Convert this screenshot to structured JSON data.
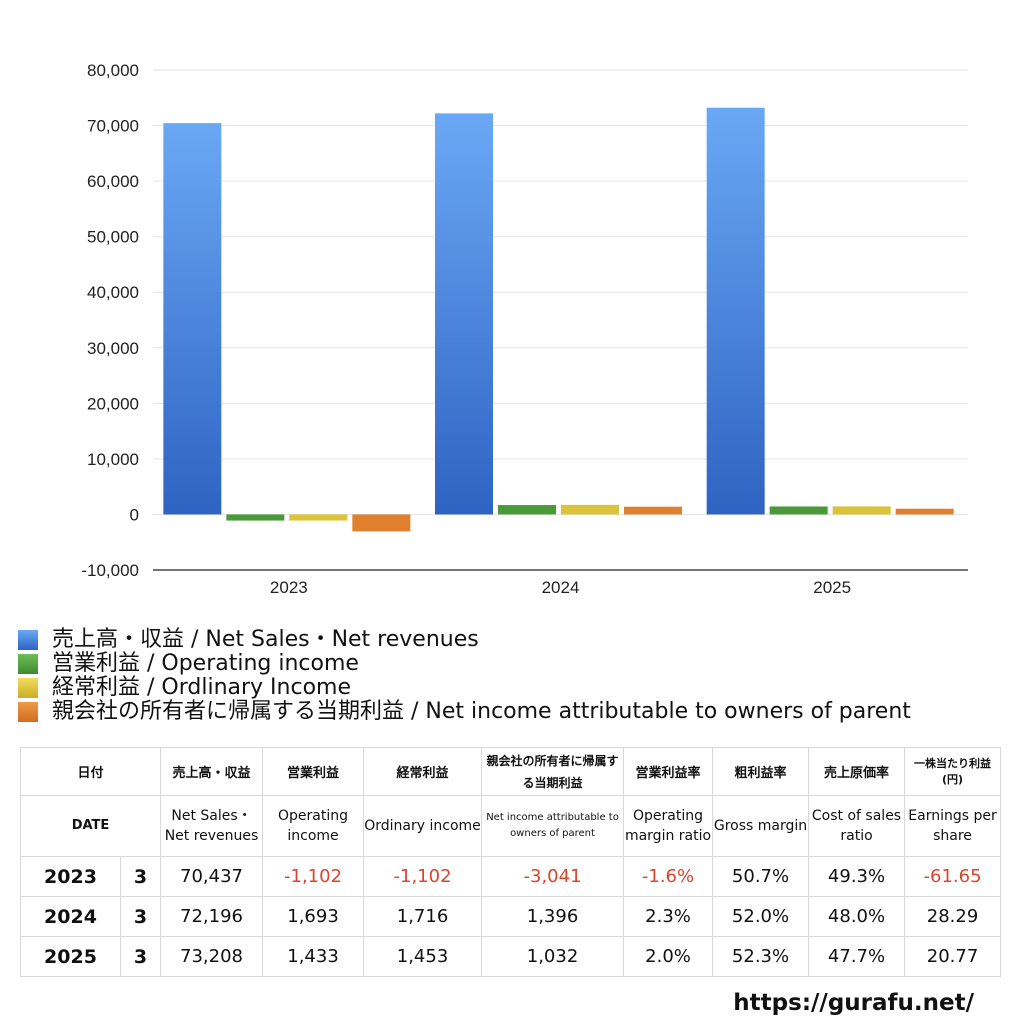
{
  "chart_data": {
    "type": "bar",
    "categories": [
      "2023",
      "2024",
      "2025"
    ],
    "series": [
      {
        "name": "売上高・収益 / Net Sales・Net revenues",
        "values": [
          70437,
          72196,
          73208
        ]
      },
      {
        "name": "営業利益 / Operating income",
        "values": [
          -1102,
          1693,
          1433
        ]
      },
      {
        "name": "経常利益 / Ordlinary Income",
        "values": [
          -1102,
          1716,
          1453
        ]
      },
      {
        "name": "親会社の所有者に帰属する当期利益 / Net income attributable to owners of parent",
        "values": [
          -3041,
          1396,
          1032
        ]
      }
    ],
    "ylim": [
      -10000,
      80000
    ],
    "yticks": [
      "80,000",
      "70,000",
      "60,000",
      "50,000",
      "40,000",
      "30,000",
      "20,000",
      "10,000",
      "0",
      "-10,000"
    ],
    "ytick_values": [
      80000,
      70000,
      60000,
      50000,
      40000,
      30000,
      20000,
      10000,
      0,
      -10000
    ],
    "grid": true,
    "legend_position": "bottom",
    "colors": {
      "net_sales_top": "#6aa8f5",
      "net_sales_bottom": "#2f63c2",
      "operating": "#4a9a3a",
      "ordinary": "#dcc43a",
      "net_income": "#e0802f"
    }
  },
  "table": {
    "header_jp": [
      "日付",
      "売上高・収益",
      "営業利益",
      "経常利益",
      "親会社の所有者に帰属する当期利益",
      "営業利益率",
      "粗利益率",
      "売上原価率",
      "一株当たり利益(円)"
    ],
    "header_en": [
      "DATE",
      "Net Sales・Net revenues",
      "Operating income",
      "Ordinary income",
      "Net income attributable to owners of parent",
      "Operating margin ratio",
      "Gross margin",
      "Cost of sales ratio",
      "Earnings per share"
    ],
    "rows": [
      {
        "year": "2023",
        "month": "3",
        "cells": [
          "70,437",
          "-1,102",
          "-1,102",
          "-3,041",
          "-1.6%",
          "50.7%",
          "49.3%",
          "-61.65"
        ]
      },
      {
        "year": "2024",
        "month": "3",
        "cells": [
          "72,196",
          "1,693",
          "1,716",
          "1,396",
          "2.3%",
          "52.0%",
          "48.0%",
          "28.29"
        ]
      },
      {
        "year": "2025",
        "month": "3",
        "cells": [
          "73,208",
          "1,433",
          "1,453",
          "1,032",
          "2.0%",
          "52.3%",
          "47.7%",
          "20.77"
        ]
      }
    ]
  },
  "footer": {
    "url": "https://gurafu.net/"
  }
}
